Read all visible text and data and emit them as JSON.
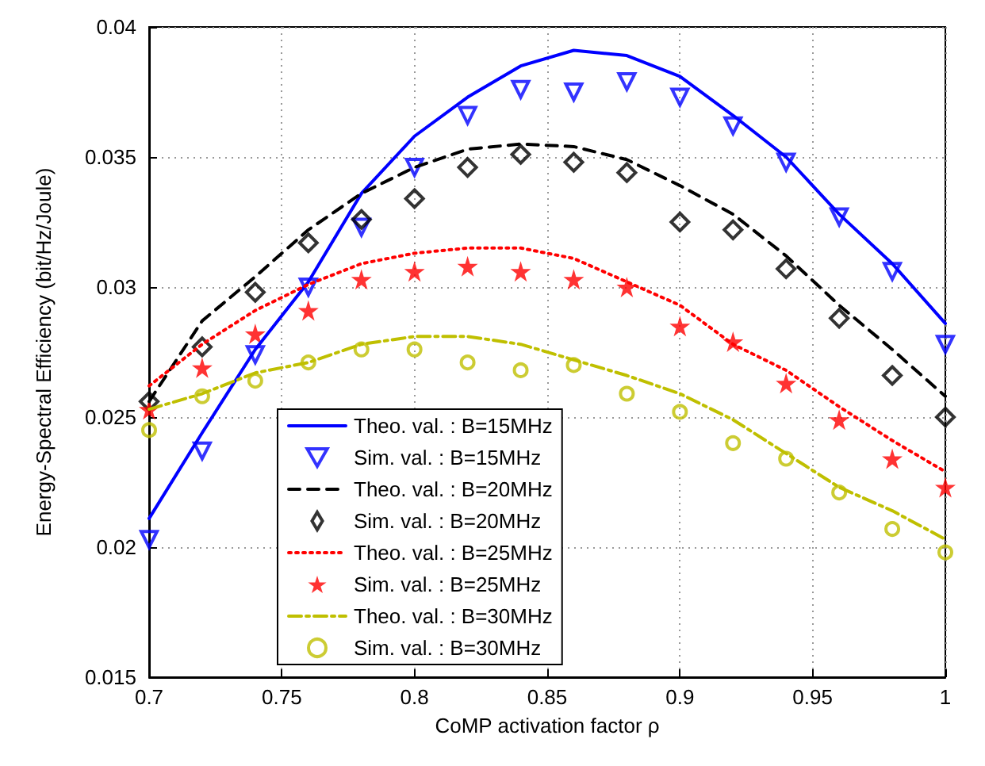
{
  "chart_data": {
    "type": "line",
    "xlabel": "CoMP activation factor ρ",
    "ylabel": "Energy-Spectral Efficiency (bit/Hz/Joule)",
    "x": [
      0.7,
      0.72,
      0.74,
      0.76,
      0.78,
      0.8,
      0.82,
      0.84,
      0.86,
      0.88,
      0.9,
      0.92,
      0.94,
      0.96,
      0.98,
      1.0
    ],
    "xlim": [
      0.7,
      1
    ],
    "xticks": [
      0.7,
      0.75,
      0.8,
      0.85,
      0.9,
      0.95,
      1
    ],
    "ylim": [
      0.015,
      0.04
    ],
    "yticks": [
      0.015,
      0.02,
      0.025,
      0.03,
      0.035,
      0.04
    ],
    "grid": true,
    "legend": "bottom",
    "series": [
      {
        "name": "Theo. val. : B=15MHz",
        "type": "line",
        "color": "#0000ff",
        "line_style": "solid",
        "marker": "none",
        "values": [
          0.0211,
          0.0244,
          0.0276,
          0.0302,
          0.0336,
          0.0358,
          0.0373,
          0.0385,
          0.0391,
          0.0389,
          0.0381,
          0.0366,
          0.035,
          0.0328,
          0.0309,
          0.0286
        ]
      },
      {
        "name": "Sim. val. : B=15MHz",
        "type": "scatter",
        "color": "#0000ff",
        "marker": "triangle",
        "values": [
          0.0203,
          0.0237,
          0.0274,
          0.03,
          0.0323,
          0.0346,
          0.0366,
          0.0376,
          0.0375,
          0.0379,
          0.0373,
          0.0362,
          0.0348,
          0.0327,
          0.0306,
          0.0278
        ]
      },
      {
        "name": "Theo. val. : B=20MHz",
        "type": "line",
        "color": "#000000",
        "line_style": "dashed",
        "marker": "none",
        "values": [
          0.0256,
          0.0287,
          0.0304,
          0.0322,
          0.0336,
          0.0346,
          0.0353,
          0.0355,
          0.0354,
          0.0349,
          0.0339,
          0.0328,
          0.0312,
          0.0293,
          0.0276,
          0.0258
        ]
      },
      {
        "name": "Sim. val. : B=20MHz",
        "type": "scatter",
        "color": "#000000",
        "marker": "diamond",
        "values": [
          0.0256,
          0.0277,
          0.0298,
          0.0317,
          0.0326,
          0.0334,
          0.0346,
          0.0351,
          0.0348,
          0.0344,
          0.0325,
          0.0322,
          0.0307,
          0.0288,
          0.0266,
          0.025
        ]
      },
      {
        "name": "Theo. val. : B=25MHz",
        "type": "line",
        "color": "#ff0000",
        "line_style": "dotted",
        "marker": "none",
        "values": [
          0.0262,
          0.0278,
          0.0291,
          0.0301,
          0.0309,
          0.0313,
          0.0315,
          0.0315,
          0.0311,
          0.0302,
          0.0293,
          0.0278,
          0.0268,
          0.0254,
          0.0241,
          0.0229
        ]
      },
      {
        "name": "Sim. val. : B=25MHz",
        "type": "scatter",
        "color": "#ff0000",
        "marker": "star",
        "values": [
          0.0253,
          0.0269,
          0.0282,
          0.0291,
          0.0303,
          0.0306,
          0.0308,
          0.0306,
          0.0303,
          0.03,
          0.0285,
          0.0279,
          0.0263,
          0.0249,
          0.0234,
          0.0223
        ]
      },
      {
        "name": "Theo. val. : B=30MHz",
        "type": "line",
        "color": "#bfbf00",
        "line_style": "dashdot",
        "marker": "none",
        "values": [
          0.0253,
          0.0259,
          0.0267,
          0.0271,
          0.0278,
          0.0281,
          0.0281,
          0.0278,
          0.0272,
          0.0266,
          0.0259,
          0.0249,
          0.0236,
          0.0223,
          0.0214,
          0.0203
        ]
      },
      {
        "name": "Sim. val. : B=30MHz",
        "type": "scatter",
        "color": "#bfbf00",
        "marker": "circle",
        "values": [
          0.0245,
          0.0258,
          0.0264,
          0.0271,
          0.0276,
          0.0276,
          0.0271,
          0.0268,
          0.027,
          0.0259,
          0.0252,
          0.024,
          0.0234,
          0.0221,
          0.0207,
          0.0198
        ]
      }
    ]
  }
}
